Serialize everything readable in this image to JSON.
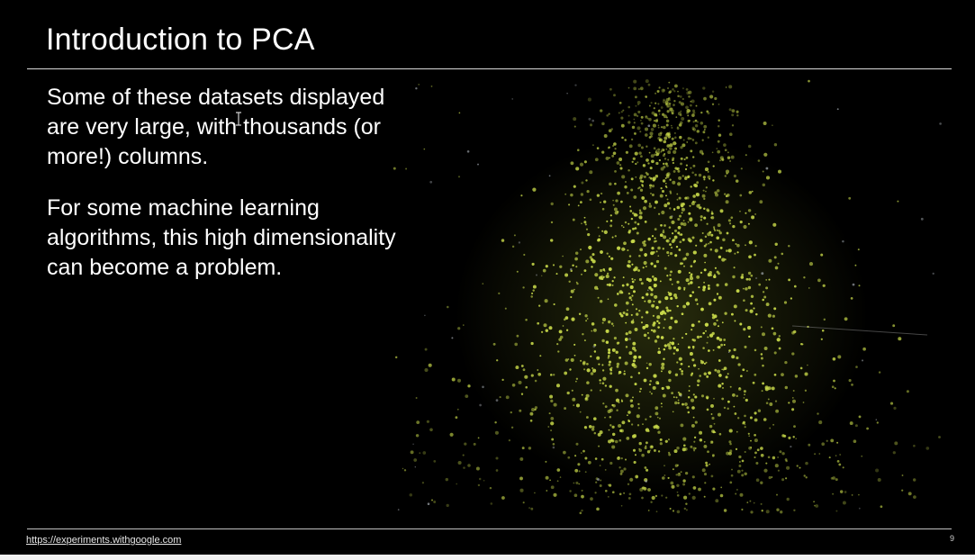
{
  "slide": {
    "title": "Introduction to PCA",
    "paragraphs": [
      "Some of these datasets displayed are very large, with thousands (or more!) columns.",
      "For some machine learning algorithms, this high dimensionality can become a problem."
    ],
    "footer_link": "https://experiments.withgoogle.com",
    "page_number": "9"
  },
  "colors": {
    "background": "#000000",
    "text": "#ffffff",
    "point": "#c8d94a"
  },
  "icons": {
    "cursor": "text-cursor-icon"
  }
}
